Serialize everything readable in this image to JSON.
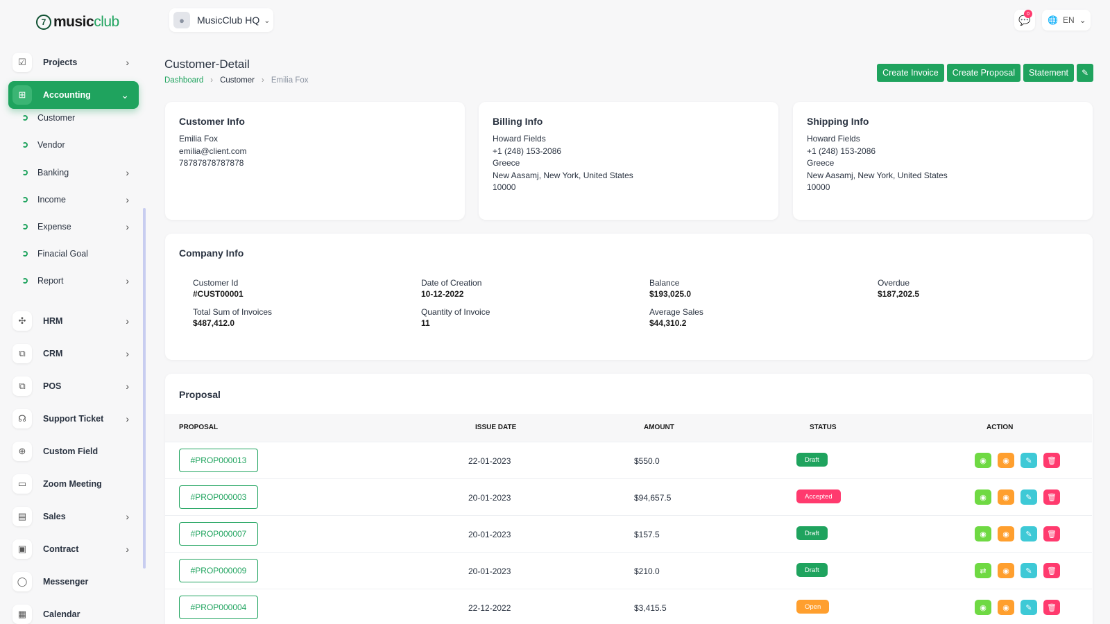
{
  "brand": {
    "mark": "7",
    "name_a": "music",
    "name_b": "club"
  },
  "colors": {
    "primary": "#1fa35e",
    "draft": "#1fa35e",
    "accepted": "#ff3a6e",
    "open": "#ff9f2e",
    "view": "#6fd943",
    "preview": "#ff9f2e",
    "edit": "#3ec9d6",
    "delete": "#ff3a6e"
  },
  "sidebar": {
    "items": [
      {
        "label": "Projects",
        "icon": "projects-icon",
        "glyph": "☑"
      },
      {
        "label": "Accounting",
        "icon": "accounting-icon",
        "glyph": "⊞"
      },
      {
        "label": "HRM",
        "icon": "hrm-icon",
        "glyph": "✣"
      },
      {
        "label": "CRM",
        "icon": "crm-icon",
        "glyph": "⧉"
      },
      {
        "label": "POS",
        "icon": "pos-icon",
        "glyph": "⧉"
      },
      {
        "label": "Support Ticket",
        "icon": "headset-icon",
        "glyph": "☊"
      },
      {
        "label": "Custom Field",
        "icon": "plus-circle-icon",
        "glyph": "⊕"
      },
      {
        "label": "Zoom Meeting",
        "icon": "video-icon",
        "glyph": "▭"
      },
      {
        "label": "Sales",
        "icon": "file-icon",
        "glyph": "▤"
      },
      {
        "label": "Contract",
        "icon": "contract-icon",
        "glyph": "▣"
      },
      {
        "label": "Messenger",
        "icon": "chat-icon",
        "glyph": "◯"
      },
      {
        "label": "Calendar",
        "icon": "calendar-icon",
        "glyph": "▦"
      }
    ],
    "accounting_sub": [
      "Customer",
      "Vendor",
      "Banking",
      "Income",
      "Expense",
      "Finacial Goal",
      "Report"
    ]
  },
  "topbar": {
    "workspace": "MusicClub HQ",
    "message_count": "0",
    "language": "EN"
  },
  "header": {
    "title": "Customer-Detail",
    "breadcrumb": [
      "Dashboard",
      "Customer",
      "Emilia Fox"
    ],
    "buttons": [
      "Create Invoice",
      "Create Proposal",
      "Statement"
    ]
  },
  "customer_info": {
    "title": "Customer Info",
    "lines": [
      "Emilia Fox",
      "emilia@client.com",
      "78787878787878"
    ]
  },
  "billing_info": {
    "title": "Billing Info",
    "lines": [
      "Howard Fields",
      "+1 (248) 153-2086",
      "Greece",
      "New Aasamj, New York, United States",
      "10000"
    ]
  },
  "shipping_info": {
    "title": "Shipping Info",
    "lines": [
      "Howard Fields",
      "+1 (248) 153-2086",
      "Greece",
      "New Aasamj, New York, United States",
      "10000"
    ]
  },
  "company_info": {
    "title": "Company Info",
    "fields": [
      {
        "label": "Customer Id",
        "value": "#CUST00001"
      },
      {
        "label": "Date of Creation",
        "value": "10-12-2022"
      },
      {
        "label": "Balance",
        "value": "$193,025.0"
      },
      {
        "label": "Overdue",
        "value": "$187,202.5"
      },
      {
        "label": "Total Sum of Invoices",
        "value": "$487,412.0"
      },
      {
        "label": "Quantity of Invoice",
        "value": "11"
      },
      {
        "label": "Average Sales",
        "value": "$44,310.2"
      }
    ]
  },
  "proposal": {
    "title": "Proposal",
    "columns": [
      "PROPOSAL",
      "ISSUE DATE",
      "AMOUNT",
      "STATUS",
      "ACTION"
    ],
    "rows": [
      {
        "id": "#PROP000013",
        "date": "22-01-2023",
        "amount": "$550.0",
        "status": "Draft",
        "first_action": "view"
      },
      {
        "id": "#PROP000003",
        "date": "20-01-2023",
        "amount": "$94,657.5",
        "status": "Accepted",
        "first_action": "view"
      },
      {
        "id": "#PROP000007",
        "date": "20-01-2023",
        "amount": "$157.5",
        "status": "Draft",
        "first_action": "view"
      },
      {
        "id": "#PROP000009",
        "date": "20-01-2023",
        "amount": "$210.0",
        "status": "Draft",
        "first_action": "convert"
      },
      {
        "id": "#PROP000004",
        "date": "22-12-2022",
        "amount": "$3,415.5",
        "status": "Open",
        "first_action": "view"
      }
    ]
  }
}
